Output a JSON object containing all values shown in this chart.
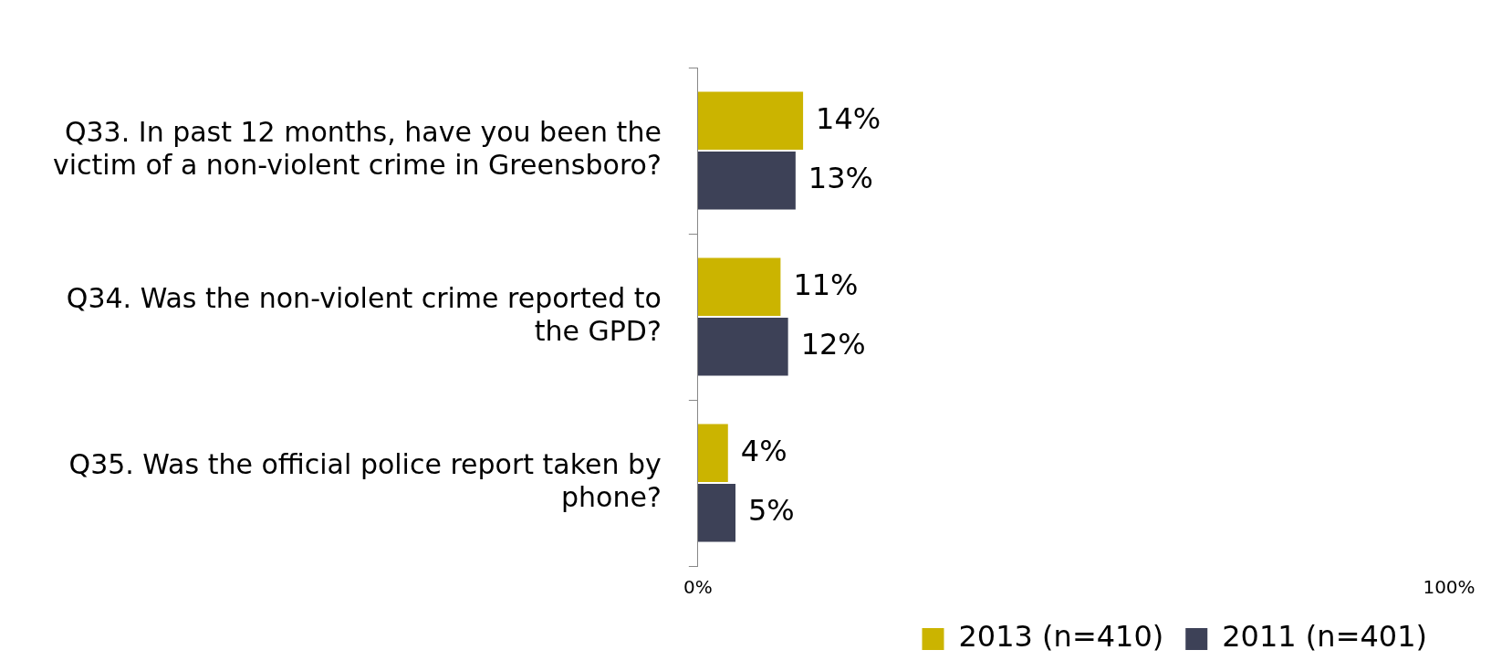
{
  "chart_data": {
    "type": "bar",
    "orientation": "horizontal",
    "categories": [
      "Q33. In past 12 months, have you been the victim of a non-violent crime in Greensboro?",
      "Q34. Was the non-violent crime reported to the GPD?",
      "Q35. Was the official police report taken by phone?"
    ],
    "series": [
      {
        "name": "2013 (n=410)",
        "color": "#cbb400",
        "values": [
          14,
          11,
          4
        ],
        "value_labels": [
          "14%",
          "11%",
          "4%"
        ]
      },
      {
        "name": "2011 (n=401)",
        "color": "#3d4157",
        "values": [
          13,
          12,
          5
        ],
        "value_labels": [
          "13%",
          "12%",
          "5%"
        ]
      }
    ],
    "xlim": [
      0,
      100
    ],
    "xticks": [
      {
        "value": 0,
        "label": "0%"
      },
      {
        "value": 100,
        "label": "100%"
      }
    ],
    "grid": false,
    "legend": "bottom right"
  }
}
